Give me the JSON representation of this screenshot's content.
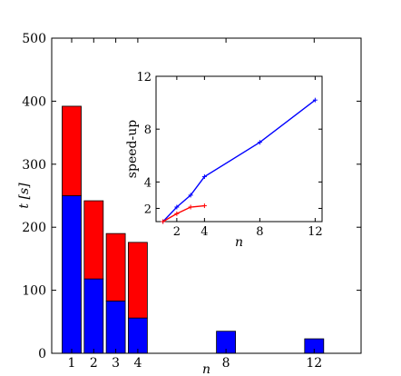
{
  "chart_data": [
    {
      "type": "bar",
      "stacked": true,
      "categories": [
        "1",
        "2",
        "3",
        "4",
        "8",
        "12"
      ],
      "x": [
        1,
        2,
        3,
        4,
        8,
        12
      ],
      "series": [
        {
          "color": "#0000ff",
          "values": [
            250,
            118,
            83,
            56,
            35,
            23
          ]
        },
        {
          "color": "#ff0000",
          "values": [
            142,
            124,
            107,
            120,
            0,
            0
          ]
        }
      ],
      "xlabel": "n",
      "ylabel": "t [s]",
      "ylim": [
        0,
        500
      ],
      "yticks": [
        "0",
        "100",
        "200",
        "300",
        "400",
        "500"
      ],
      "xticks": [
        "1",
        "2",
        "3",
        "4",
        "8",
        "12"
      ],
      "grid": false
    },
    {
      "type": "line",
      "xlabel": "n",
      "ylabel": "speed-up",
      "xlim": [
        0.5,
        12.5
      ],
      "ylim": [
        1,
        12
      ],
      "xticks": [
        "2",
        "4",
        "8",
        "12"
      ],
      "yticks": [
        "2",
        "4",
        "8",
        "12"
      ],
      "grid": false,
      "series": [
        {
          "color": "#0000ff",
          "x": [
            1,
            2,
            3,
            4,
            8,
            12
          ],
          "y": [
            1.0,
            2.1,
            3.0,
            4.4,
            7.0,
            10.2
          ]
        },
        {
          "color": "#ff0000",
          "x": [
            1,
            2,
            3,
            4
          ],
          "y": [
            1.0,
            1.6,
            2.1,
            2.2
          ]
        }
      ]
    }
  ]
}
